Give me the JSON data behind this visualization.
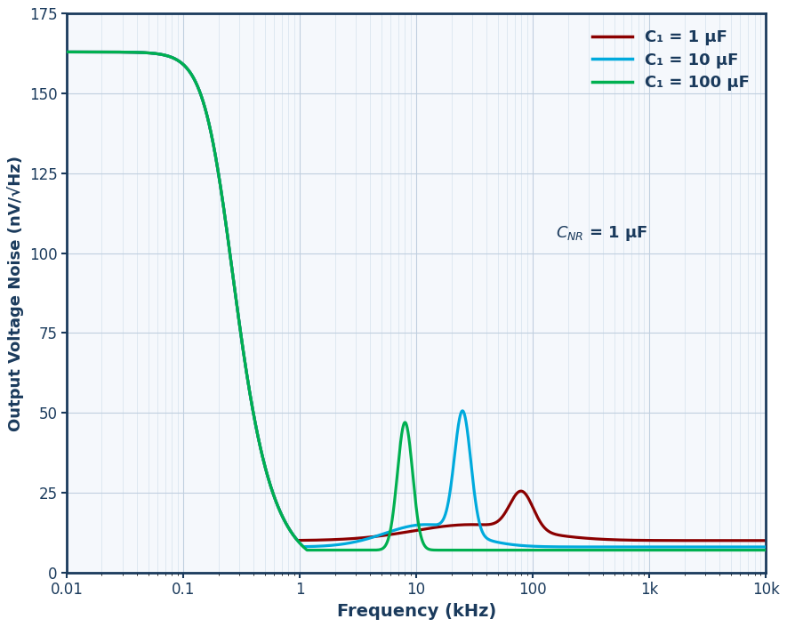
{
  "xlabel": "Frequency (kHz)",
  "ylabel": "Output Voltage Noise (nV/√Hz)",
  "xlim": [
    0.01,
    10000
  ],
  "ylim": [
    0,
    175
  ],
  "yticks": [
    0,
    25,
    50,
    75,
    100,
    125,
    150,
    175
  ],
  "colors": {
    "c1_1uF": "#8B0000",
    "c1_10uF": "#00AADD",
    "c1_100uF": "#00B050"
  },
  "legend_labels": [
    "C₁ = 1 μF",
    "C₁ = 10 μF",
    "C₁ = 100 μF"
  ],
  "background_color": "#f0f4f8",
  "grid_color": "#c8d4e0",
  "border_color": "#1a3a5c",
  "text_color": "#1a3a5c",
  "line_width": 2.3
}
